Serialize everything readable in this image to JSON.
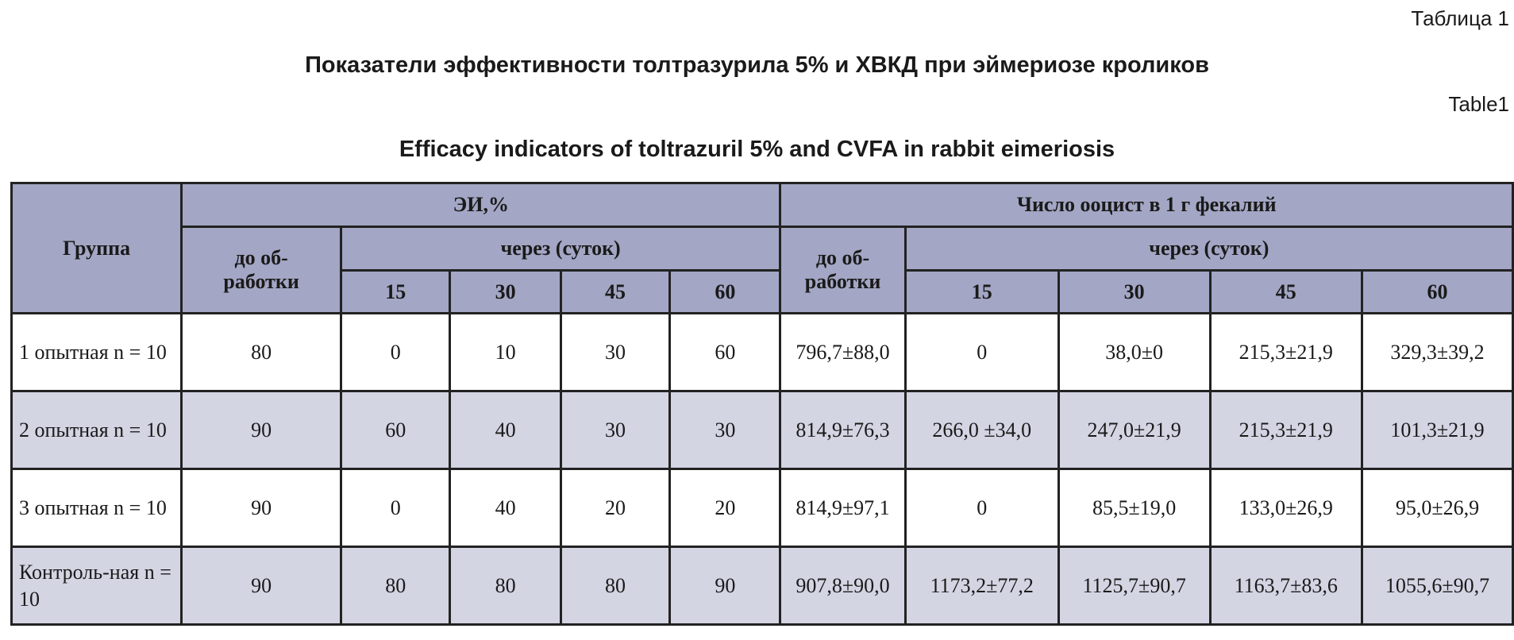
{
  "captions": {
    "ru_label": "Таблица 1",
    "ru_title": "Показатели эффективности толтразурила 5% и ХВКД при эймериозе кроликов",
    "en_label": "Table1",
    "en_title": "Efficacy indicators of toltrazuril 5% and CVFA in rabbit eimeriosis"
  },
  "colors": {
    "header_bg": "#a3a6c4",
    "alt_row_bg": "#d3d5e3",
    "border": "#222222"
  },
  "table": {
    "group_header": "Группа",
    "ei_header": "ЭИ,%",
    "oocyst_header": "Число ооцист в 1 г фекалий",
    "before_label": "до об-работки",
    "after_label": "через (суток)",
    "days": [
      "15",
      "30",
      "45",
      "60"
    ],
    "rows": [
      {
        "group": "1 опытная n = 10",
        "ei": [
          "80",
          "0",
          "10",
          "30",
          "60"
        ],
        "oocysts": [
          "796,7±88,0",
          "0",
          "38,0±0",
          "215,3±21,9",
          "329,3±39,2"
        ]
      },
      {
        "group": "2 опытная n = 10",
        "ei": [
          "90",
          "60",
          "40",
          "30",
          "30"
        ],
        "oocysts": [
          "814,9±76,3",
          "266,0 ±34,0",
          "247,0±21,9",
          "215,3±21,9",
          "101,3±21,9"
        ]
      },
      {
        "group": "3 опытная n = 10",
        "ei": [
          "90",
          "0",
          "40",
          "20",
          "20"
        ],
        "oocysts": [
          "814,9±97,1",
          "0",
          "85,5±19,0",
          "133,0±26,9",
          "95,0±26,9"
        ]
      },
      {
        "group": "Контроль-ная n = 10",
        "ei": [
          "90",
          "80",
          "80",
          "80",
          "90"
        ],
        "oocysts": [
          "907,8±90,0",
          "1173,2±77,2",
          "1125,7±90,7",
          "1163,7±83,6",
          "1055,6±90,7"
        ]
      }
    ]
  }
}
